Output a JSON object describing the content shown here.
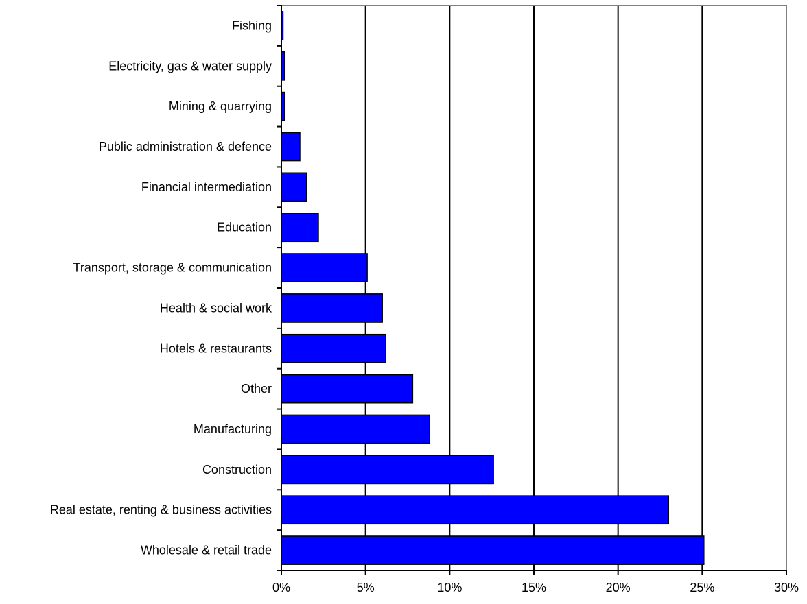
{
  "chart_data": {
    "type": "bar",
    "orientation": "horizontal",
    "categories": [
      "Fishing",
      "Electricity, gas & water supply",
      "Mining & quarrying",
      "Public administration & defence",
      "Financial intermediation",
      "Education",
      "Transport, storage & communication",
      "Health & social work",
      "Hotels & restaurants",
      "Other",
      "Manufacturing",
      "Construction",
      "Real estate, renting & business activities",
      "Wholesale & retail trade"
    ],
    "values": [
      0.1,
      0.2,
      0.2,
      1.1,
      1.5,
      2.2,
      5.1,
      6.0,
      6.2,
      7.8,
      8.8,
      12.6,
      23.0,
      25.1
    ],
    "xlim": [
      0,
      30
    ],
    "x_ticks": [
      "0%",
      "5%",
      "10%",
      "15%",
      "20%",
      "25%",
      "30%"
    ],
    "x_tick_values": [
      0,
      5,
      10,
      15,
      20,
      25,
      30
    ],
    "grid": "vertical",
    "legend": "none",
    "bar_color": "#0000FF"
  }
}
